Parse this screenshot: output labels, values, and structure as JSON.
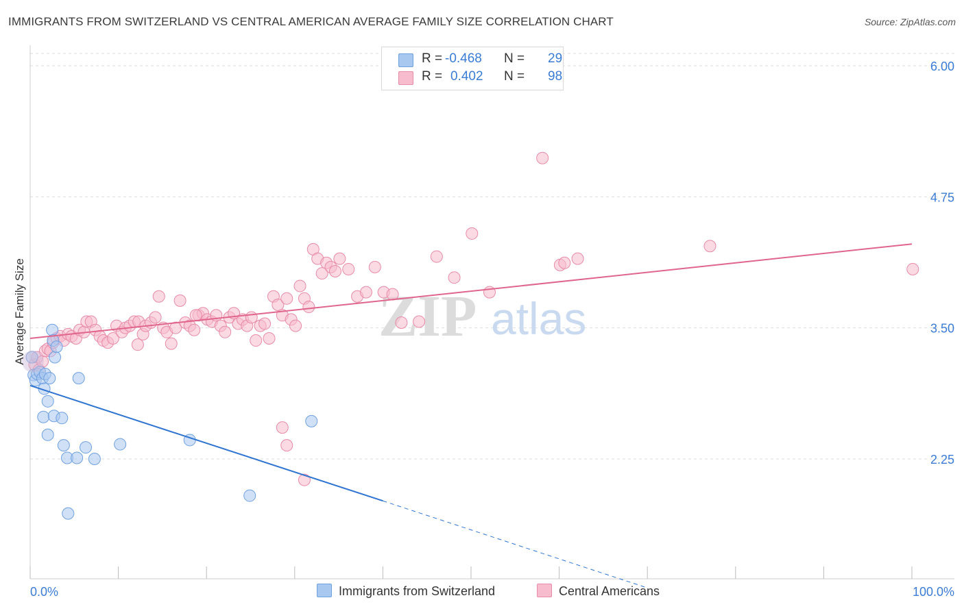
{
  "title": "IMMIGRANTS FROM SWITZERLAND VS CENTRAL AMERICAN AVERAGE FAMILY SIZE CORRELATION CHART",
  "source": "Source: ZipAtlas.com",
  "watermark": {
    "zip": "ZIP",
    "atlas": "atlas"
  },
  "legend": {
    "r_label": "R =",
    "n_label": "N =",
    "rows": [
      {
        "r": "-0.468",
        "n": "29",
        "color": "#a9c8f0",
        "border": "#6fa0e0"
      },
      {
        "r": "0.402",
        "n": "98",
        "color": "#f7bccd",
        "border": "#e88aa8"
      }
    ]
  },
  "bottom_legend": [
    {
      "label": "Immigrants from Switzerland",
      "color": "#a9c8f0",
      "border": "#6fa0e0"
    },
    {
      "label": "Central Americans",
      "color": "#f7bccd",
      "border": "#e88aa8"
    }
  ],
  "chart_data": {
    "type": "scatter",
    "title": "IMMIGRANTS FROM SWITZERLAND VS CENTRAL AMERICAN AVERAGE FAMILY SIZE CORRELATION CHART",
    "xlabel": "",
    "ylabel": "Average Family Size",
    "xlim": [
      0,
      100
    ],
    "ylim": [
      1.0,
      6.0
    ],
    "x_tick_labels": [
      "0.0%",
      "100.0%"
    ],
    "y_ticks": [
      2.25,
      3.5,
      4.75,
      6.0
    ],
    "y_tick_labels": [
      "2.25",
      "3.50",
      "4.75",
      "6.00"
    ],
    "grid": true,
    "series": [
      {
        "name": "Immigrants from Switzerland",
        "color": "#6fa0e0",
        "fill": "#a9c8f0",
        "line_color": "#2e74d0",
        "trend": {
          "x0": 0,
          "y0": 2.95,
          "x1": 40,
          "y1": 1.85,
          "dash_to_x": 70,
          "dash_to_y": 1.02
        },
        "points": [
          [
            0.2,
            3.22
          ],
          [
            0.4,
            3.05
          ],
          [
            0.6,
            3.0
          ],
          [
            0.8,
            3.06
          ],
          [
            1.1,
            3.08
          ],
          [
            1.4,
            3.02
          ],
          [
            1.7,
            3.06
          ],
          [
            2.0,
            2.8
          ],
          [
            2.2,
            3.02
          ],
          [
            1.6,
            2.92
          ],
          [
            2.5,
            3.48
          ],
          [
            2.6,
            3.38
          ],
          [
            2.8,
            3.22
          ],
          [
            3.0,
            3.32
          ],
          [
            1.5,
            2.65
          ],
          [
            2.7,
            2.66
          ],
          [
            3.6,
            2.64
          ],
          [
            2.0,
            2.48
          ],
          [
            3.8,
            2.38
          ],
          [
            4.2,
            2.26
          ],
          [
            6.3,
            2.36
          ],
          [
            5.3,
            2.26
          ],
          [
            7.3,
            2.25
          ],
          [
            10.2,
            2.39
          ],
          [
            18.1,
            2.43
          ],
          [
            24.9,
            1.9
          ],
          [
            31.9,
            2.61
          ],
          [
            4.3,
            1.73
          ],
          [
            5.5,
            3.02
          ]
        ]
      },
      {
        "name": "Central Americans",
        "color": "#e88aa8",
        "fill": "#f7bccd",
        "line_color": "#e0658d",
        "trend": {
          "x0": 0,
          "y0": 3.4,
          "x1": 100,
          "y1": 4.3
        },
        "points": [
          [
            0.5,
            3.15
          ],
          [
            0.8,
            3.22
          ],
          [
            1.0,
            3.1
          ],
          [
            1.4,
            3.18
          ],
          [
            1.7,
            3.28
          ],
          [
            2.0,
            3.3
          ],
          [
            2.3,
            3.28
          ],
          [
            2.6,
            3.36
          ],
          [
            3.0,
            3.4
          ],
          [
            3.4,
            3.42
          ],
          [
            3.8,
            3.38
          ],
          [
            4.3,
            3.44
          ],
          [
            4.7,
            3.42
          ],
          [
            5.2,
            3.4
          ],
          [
            5.6,
            3.48
          ],
          [
            6.1,
            3.46
          ],
          [
            6.4,
            3.56
          ],
          [
            6.9,
            3.56
          ],
          [
            7.4,
            3.48
          ],
          [
            7.9,
            3.42
          ],
          [
            8.3,
            3.38
          ],
          [
            8.8,
            3.36
          ],
          [
            9.4,
            3.4
          ],
          [
            9.8,
            3.52
          ],
          [
            10.4,
            3.46
          ],
          [
            10.8,
            3.5
          ],
          [
            11.3,
            3.52
          ],
          [
            11.8,
            3.56
          ],
          [
            12.3,
            3.56
          ],
          [
            12.8,
            3.44
          ],
          [
            13.1,
            3.52
          ],
          [
            13.7,
            3.55
          ],
          [
            14.2,
            3.6
          ],
          [
            14.6,
            3.8
          ],
          [
            15.1,
            3.5
          ],
          [
            15.5,
            3.46
          ],
          [
            16.0,
            3.35
          ],
          [
            16.5,
            3.5
          ],
          [
            17.0,
            3.76
          ],
          [
            17.6,
            3.55
          ],
          [
            18.1,
            3.52
          ],
          [
            18.6,
            3.48
          ],
          [
            19.1,
            3.62
          ],
          [
            19.6,
            3.64
          ],
          [
            20.1,
            3.58
          ],
          [
            20.6,
            3.56
          ],
          [
            21.1,
            3.62
          ],
          [
            21.6,
            3.52
          ],
          [
            22.1,
            3.46
          ],
          [
            22.6,
            3.6
          ],
          [
            23.1,
            3.64
          ],
          [
            23.6,
            3.54
          ],
          [
            24.1,
            3.58
          ],
          [
            24.6,
            3.52
          ],
          [
            25.1,
            3.6
          ],
          [
            25.6,
            3.38
          ],
          [
            26.1,
            3.52
          ],
          [
            26.6,
            3.54
          ],
          [
            27.1,
            3.4
          ],
          [
            27.6,
            3.8
          ],
          [
            28.1,
            3.72
          ],
          [
            28.6,
            3.62
          ],
          [
            29.1,
            3.78
          ],
          [
            29.6,
            3.58
          ],
          [
            30.1,
            3.52
          ],
          [
            30.6,
            3.9
          ],
          [
            31.1,
            3.78
          ],
          [
            31.6,
            3.7
          ],
          [
            32.1,
            4.25
          ],
          [
            32.6,
            4.16
          ],
          [
            33.1,
            4.02
          ],
          [
            33.6,
            4.12
          ],
          [
            34.1,
            4.08
          ],
          [
            34.6,
            4.04
          ],
          [
            35.1,
            4.16
          ],
          [
            36.1,
            4.06
          ],
          [
            37.1,
            3.8
          ],
          [
            38.1,
            3.84
          ],
          [
            39.1,
            4.08
          ],
          [
            40.1,
            3.84
          ],
          [
            41.1,
            3.82
          ],
          [
            42.1,
            3.55
          ],
          [
            44.1,
            3.56
          ],
          [
            46.1,
            4.18
          ],
          [
            48.1,
            3.98
          ],
          [
            50.1,
            4.4
          ],
          [
            52.1,
            3.84
          ],
          [
            58.1,
            5.12
          ],
          [
            60.1,
            4.1
          ],
          [
            60.6,
            4.12
          ],
          [
            62.1,
            4.16
          ],
          [
            77.1,
            4.28
          ],
          [
            100.1,
            4.06
          ],
          [
            28.6,
            2.55
          ],
          [
            29.1,
            2.38
          ],
          [
            31.1,
            2.05
          ],
          [
            18.8,
            3.62
          ],
          [
            12.2,
            3.34
          ]
        ]
      }
    ]
  }
}
